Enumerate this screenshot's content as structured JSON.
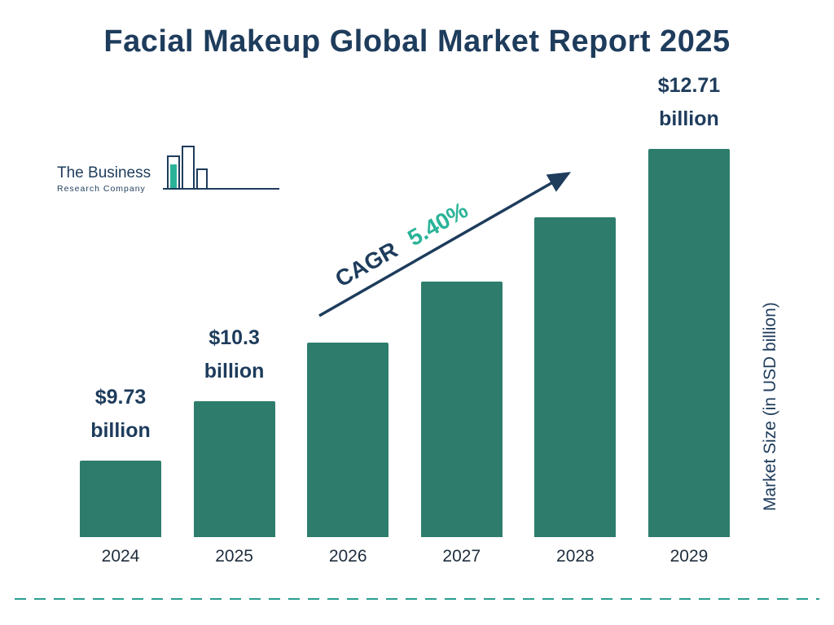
{
  "title": "Facial Makeup Global Market Report 2025",
  "logo": {
    "line1": "The Business",
    "line2": "Research Company"
  },
  "annotation": {
    "cagr_label": "CAGR",
    "cagr_value": "5.40%"
  },
  "y_axis_label": "Market Size (in USD billion)",
  "colors": {
    "navy": "#1e3c5c",
    "bar_green": "#2e7d6c",
    "accent_teal": "#2ab398",
    "dashed_teal": "#2a9d8f"
  },
  "chart_data": {
    "type": "bar",
    "title": "Facial Makeup Global Market Report 2025",
    "categories": [
      "2024",
      "2025",
      "2026",
      "2027",
      "2028",
      "2029"
    ],
    "values": [
      9.73,
      10.3,
      10.86,
      11.44,
      12.06,
      12.71
    ],
    "value_labels": [
      {
        "index": 0,
        "amount": "$9.73",
        "unit": "billion"
      },
      {
        "index": 1,
        "amount": "$10.3",
        "unit": "billion"
      },
      {
        "index": 5,
        "amount": "$12.71",
        "unit": "billion"
      }
    ],
    "cagr": "5.40%",
    "xlabel": "",
    "ylabel": "Market Size (in USD billion)",
    "ylim_render_hint": [
      9.0,
      12.71
    ],
    "bar_color": "#2e7d6c",
    "legend": "none",
    "grid": false
  }
}
